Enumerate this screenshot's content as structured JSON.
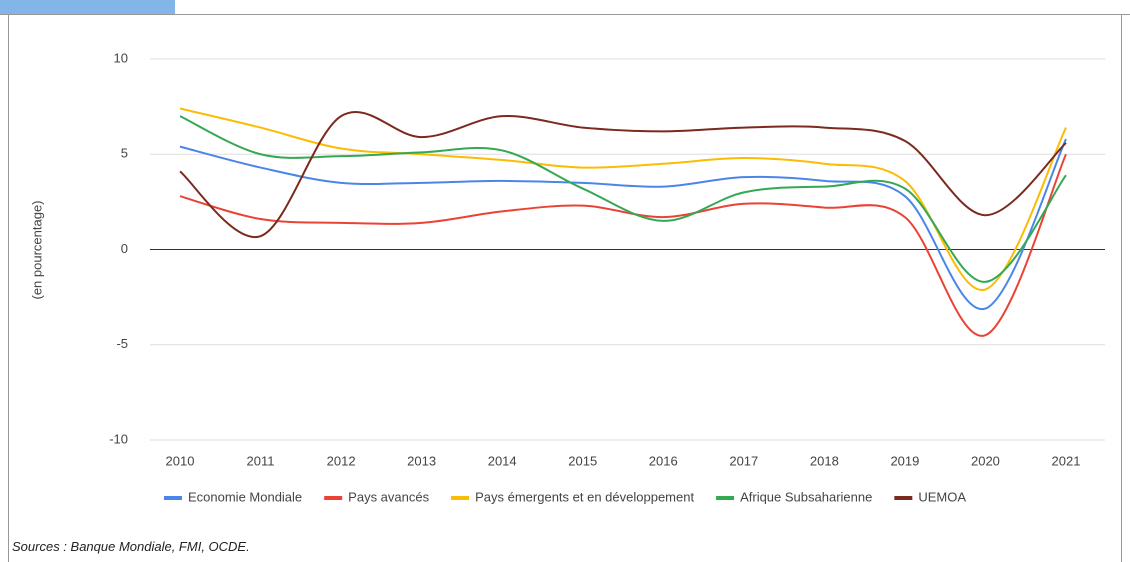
{
  "chart_data": {
    "type": "line",
    "y_label": "(en pourcentage)",
    "categories": [
      "2010",
      "2011",
      "2012",
      "2013",
      "2014",
      "2015",
      "2016",
      "2017",
      "2018",
      "2019",
      "2020",
      "2021"
    ],
    "series": [
      {
        "name": "Economie Mondiale",
        "color": "#4a86e8",
        "values": [
          5.4,
          4.3,
          3.5,
          3.5,
          3.6,
          3.5,
          3.3,
          3.8,
          3.6,
          2.8,
          -3.1,
          5.8
        ]
      },
      {
        "name": "Pays avancés",
        "color": "#ea4335",
        "values": [
          2.8,
          1.6,
          1.4,
          1.4,
          2.0,
          2.3,
          1.7,
          2.4,
          2.2,
          1.7,
          -4.5,
          5.0
        ]
      },
      {
        "name": "Pays émergents et en développement",
        "color": "#fbbc04",
        "values": [
          7.4,
          6.4,
          5.3,
          5.0,
          4.7,
          4.3,
          4.5,
          4.8,
          4.5,
          3.6,
          -2.1,
          6.4
        ]
      },
      {
        "name": "Afrique Subsaharienne",
        "color": "#34a853",
        "values": [
          7.0,
          5.0,
          4.9,
          5.1,
          5.2,
          3.2,
          1.5,
          3.0,
          3.3,
          3.2,
          -1.7,
          3.9
        ]
      },
      {
        "name": "UEMOA",
        "color": "#7b2a1d",
        "values": [
          4.1,
          0.7,
          7.0,
          5.9,
          7.0,
          6.4,
          6.2,
          6.4,
          6.4,
          5.7,
          1.8,
          5.6
        ]
      }
    ],
    "ylim": [
      -10,
      10
    ],
    "yticks": [
      -10,
      -5,
      0,
      5,
      10
    ],
    "grid": true,
    "legend": "bottom",
    "source": "Sources : Banque Mondiale, FMI, OCDE."
  }
}
